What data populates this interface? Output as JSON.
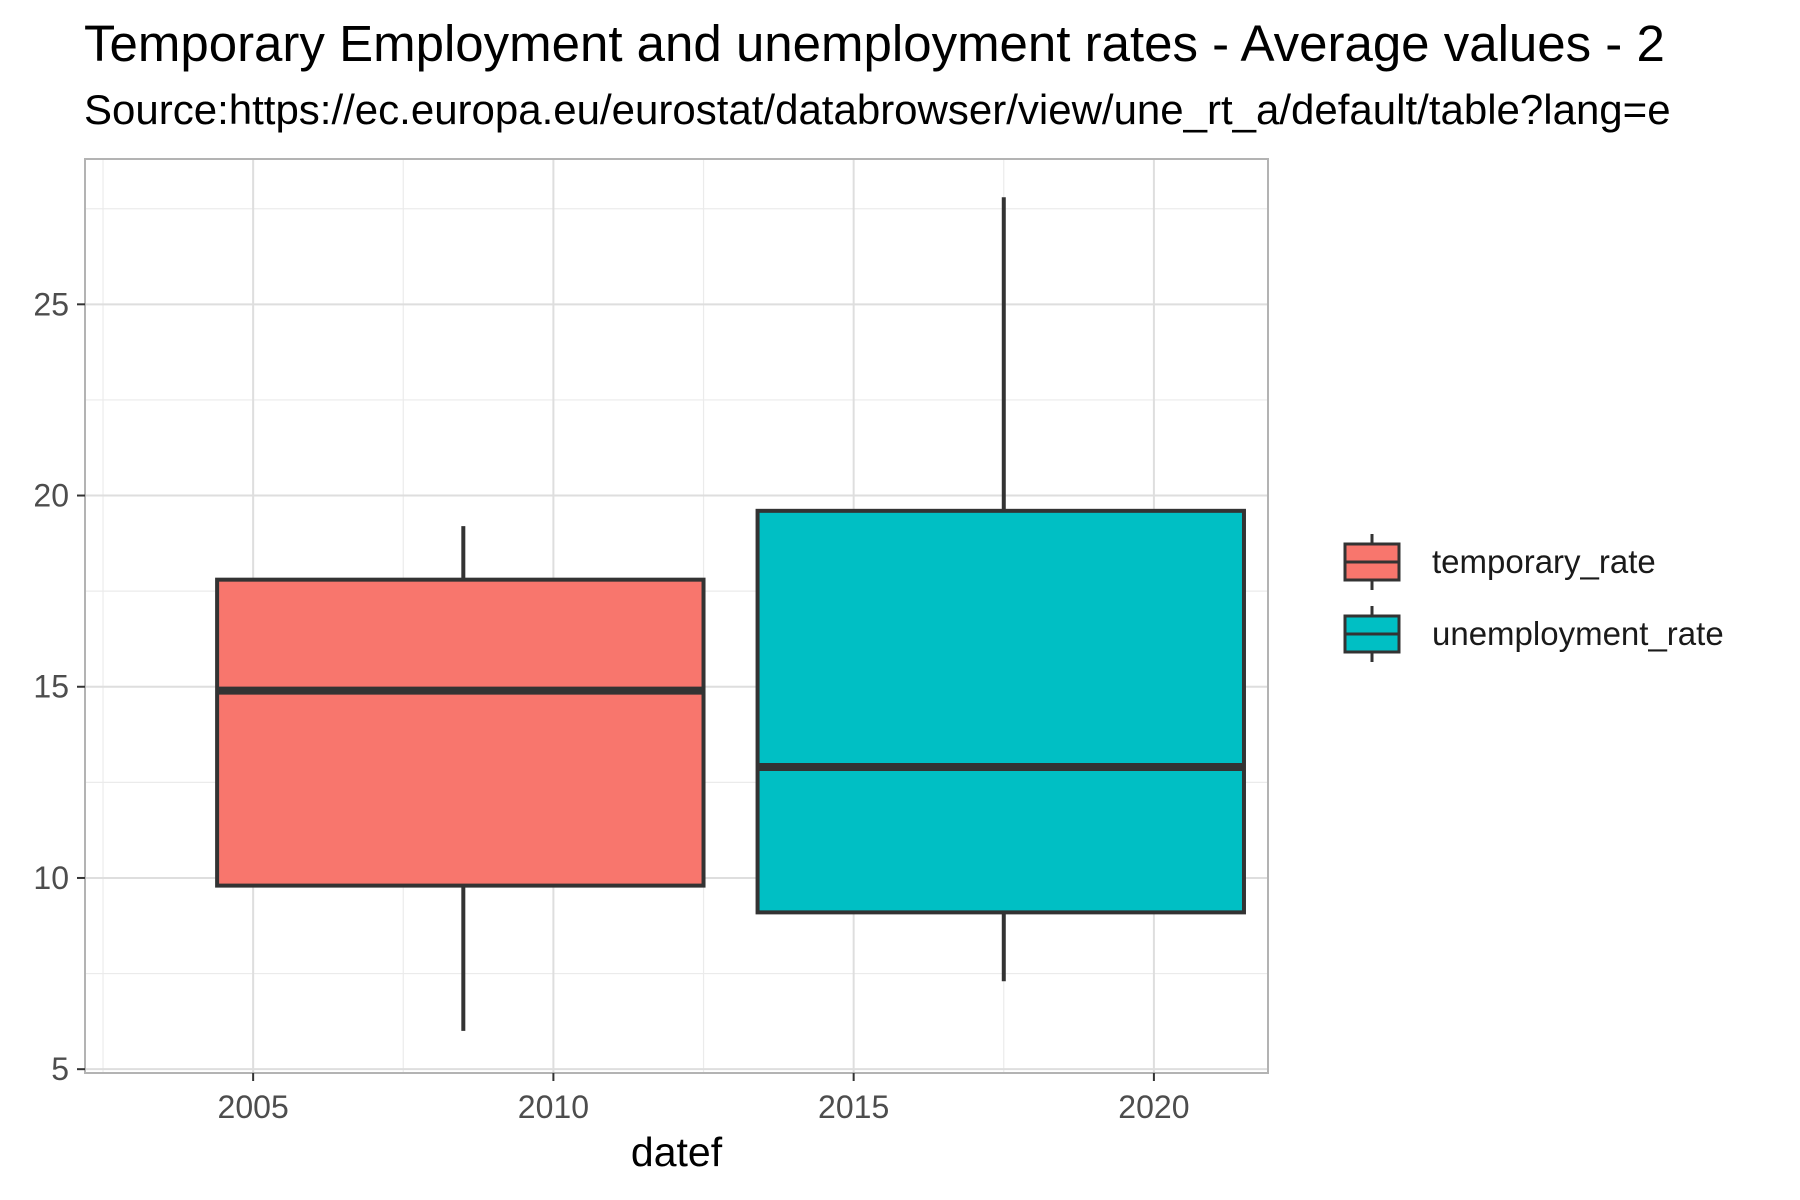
{
  "title": "Temporary Employment and unemployment  rates - Average values - 2",
  "subtitle": "Source:https://ec.europa.eu/eurostat/databrowser/view/une_rt_a/default/table?lang=e",
  "chart_data": {
    "type": "boxplot",
    "xlabel": "datef",
    "ylabel": "",
    "xlim": [
      2002.2,
      2021.9
    ],
    "ylim": [
      4.9,
      28.8
    ],
    "x_ticks": [
      2005,
      2010,
      2015,
      2020
    ],
    "y_ticks": [
      5,
      10,
      15,
      20,
      25
    ],
    "grid": true,
    "legend_position": "right",
    "series": [
      {
        "name": "temporary_rate",
        "color": "#F8766D",
        "x_from": 2004.4,
        "x_to": 2012.5,
        "whisker_x": 2008.5,
        "min": 6.0,
        "q1": 9.8,
        "median": 14.9,
        "q3": 17.8,
        "max": 19.2
      },
      {
        "name": "unemployment_rate",
        "color": "#00BFC4",
        "x_from": 2013.4,
        "x_to": 2021.5,
        "whisker_x": 2017.5,
        "min": 7.3,
        "q1": 9.1,
        "median": 12.9,
        "q3": 19.6,
        "max": 27.8
      }
    ]
  }
}
